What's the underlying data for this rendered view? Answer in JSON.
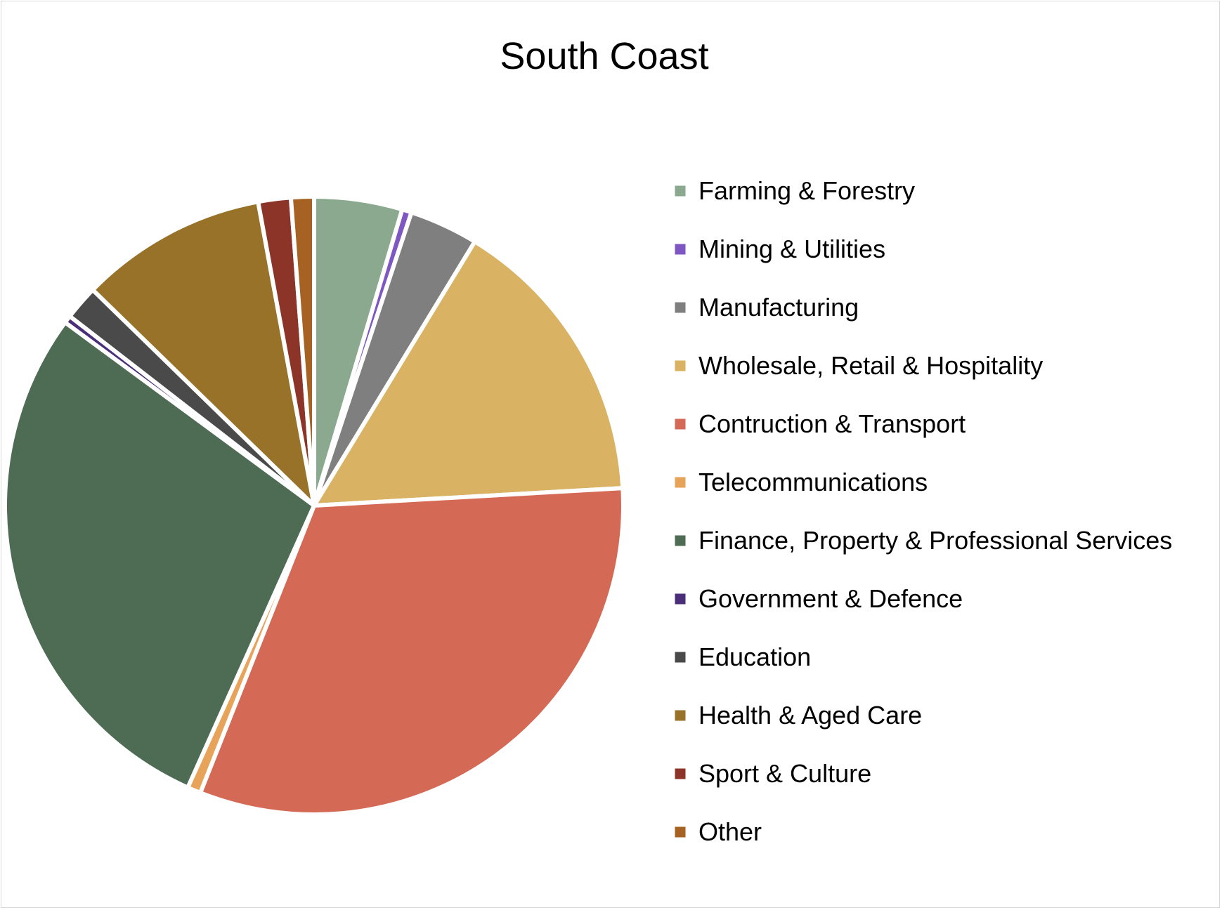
{
  "chart_data": {
    "type": "pie",
    "title": "South Coast",
    "legend_position": "right",
    "start_angle": "12 o'clock",
    "direction": "clockwise",
    "slices": [
      {
        "label": "Farming & Forestry",
        "value": 4.6,
        "color": "#8aa98f"
      },
      {
        "label": "Mining & Utilities",
        "value": 0.5,
        "color": "#7e57c2"
      },
      {
        "label": "Manufacturing",
        "value": 3.6,
        "color": "#7f7f7f"
      },
      {
        "label": "Wholesale, Retail & Hospitality",
        "value": 15.4,
        "color": "#d9b263"
      },
      {
        "label": "Contruction & Transport",
        "value": 31.9,
        "color": "#d46a55"
      },
      {
        "label": "Telecommunications",
        "value": 0.7,
        "color": "#e8a35a"
      },
      {
        "label": "Finance, Property & Professional Services",
        "value": 28.4,
        "color": "#4e6b53"
      },
      {
        "label": "Government & Defence",
        "value": 0.4,
        "color": "#4b2e7a"
      },
      {
        "label": "Education",
        "value": 1.8,
        "color": "#4a4a4a"
      },
      {
        "label": "Health & Aged Care",
        "value": 9.8,
        "color": "#977228"
      },
      {
        "label": "Sport & Culture",
        "value": 1.7,
        "color": "#8c3428"
      },
      {
        "label": "Other",
        "value": 1.2,
        "color": "#a56222"
      }
    ]
  }
}
